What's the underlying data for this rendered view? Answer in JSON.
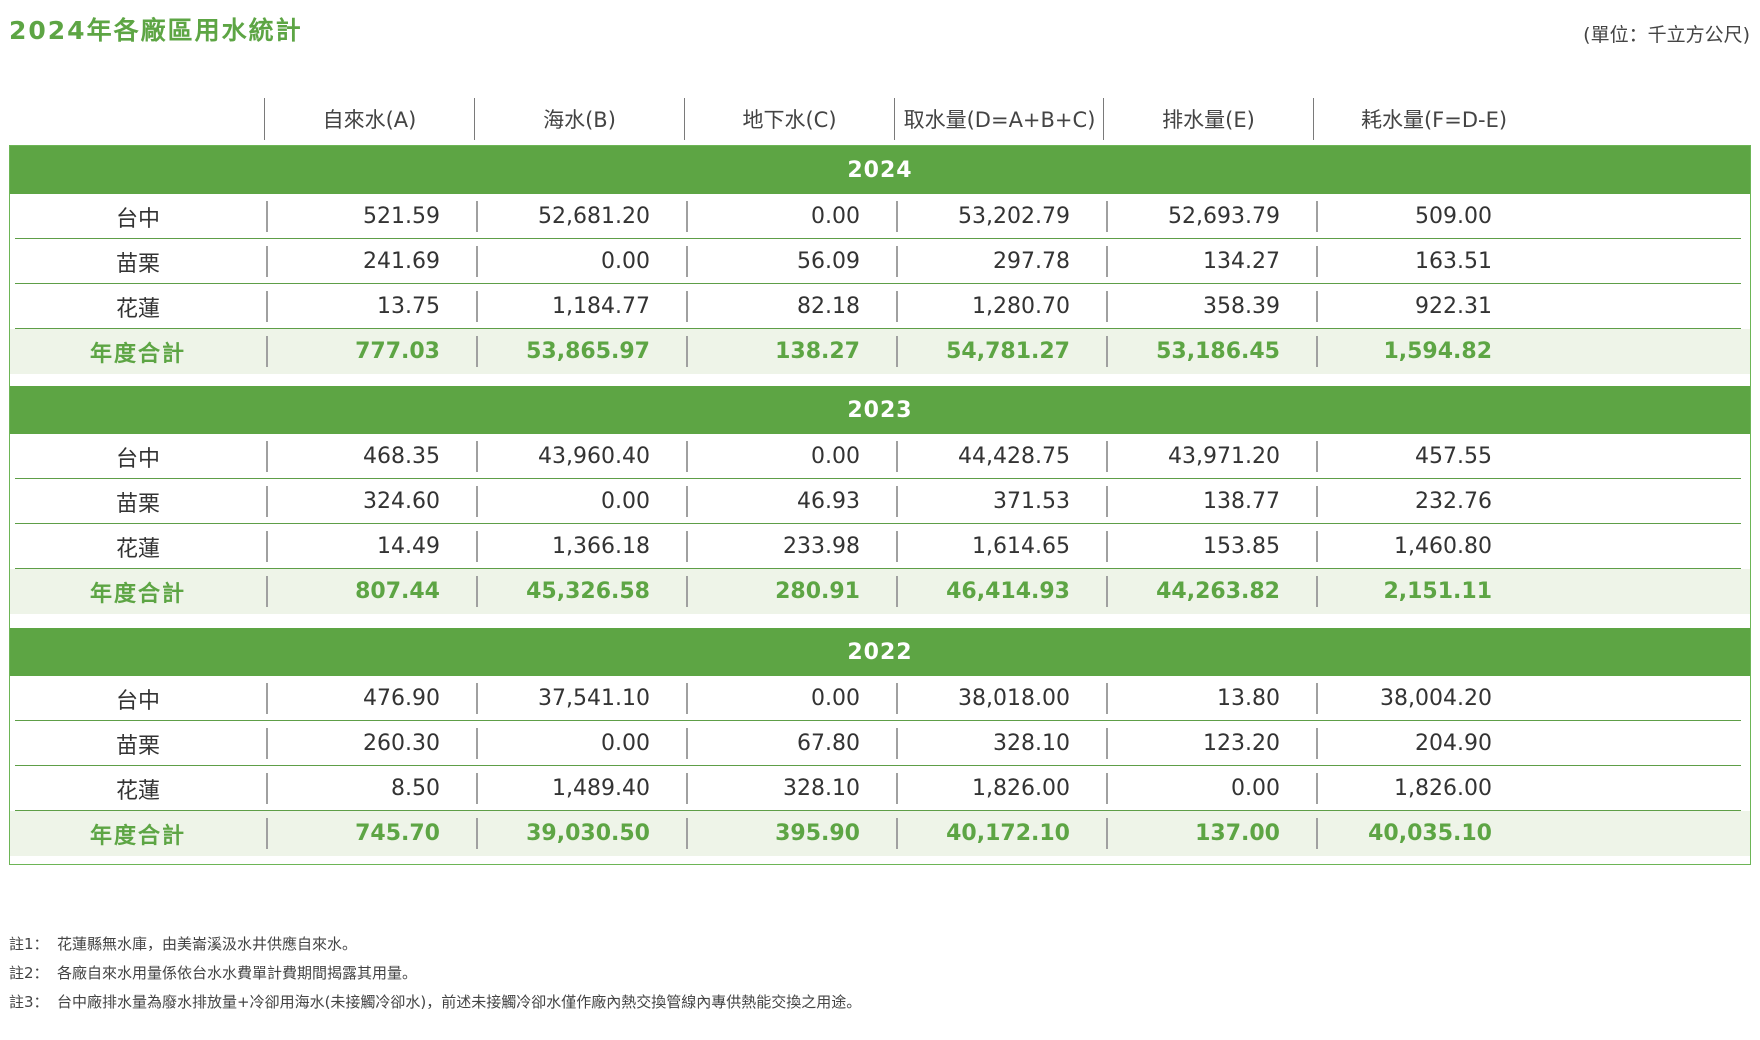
{
  "title": "2024年各廠區用水統計",
  "unit": "(單位：千立方公尺)",
  "columns": [
    "自來水(A)",
    "海水(B)",
    "地下水(C)",
    "取水量(D=A+B+C)",
    "排水量(E)",
    "耗水量(F=D-E)"
  ],
  "years": [
    {
      "year": "2024",
      "rows": [
        {
          "label": "台中",
          "values": [
            "521.59",
            "52,681.20",
            "0.00",
            "53,202.79",
            "52,693.79",
            "509.00"
          ]
        },
        {
          "label": "苗栗",
          "values": [
            "241.69",
            "0.00",
            "56.09",
            "297.78",
            "134.27",
            "163.51"
          ]
        },
        {
          "label": "花蓮",
          "values": [
            "13.75",
            "1,184.77",
            "82.18",
            "1,280.70",
            "358.39",
            "922.31"
          ]
        }
      ],
      "total": {
        "label": "年度合計",
        "values": [
          "777.03",
          "53,865.97",
          "138.27",
          "54,781.27",
          "53,186.45",
          "1,594.82"
        ]
      }
    },
    {
      "year": "2023",
      "rows": [
        {
          "label": "台中",
          "values": [
            "468.35",
            "43,960.40",
            "0.00",
            "44,428.75",
            "43,971.20",
            "457.55"
          ]
        },
        {
          "label": "苗栗",
          "values": [
            "324.60",
            "0.00",
            "46.93",
            "371.53",
            "138.77",
            "232.76"
          ]
        },
        {
          "label": "花蓮",
          "values": [
            "14.49",
            "1,366.18",
            "233.98",
            "1,614.65",
            "153.85",
            "1,460.80"
          ]
        }
      ],
      "total": {
        "label": "年度合計",
        "values": [
          "807.44",
          "45,326.58",
          "280.91",
          "46,414.93",
          "44,263.82",
          "2,151.11"
        ]
      }
    },
    {
      "year": "2022",
      "rows": [
        {
          "label": "台中",
          "values": [
            "476.90",
            "37,541.10",
            "0.00",
            "38,018.00",
            "13.80",
            "38,004.20"
          ]
        },
        {
          "label": "苗栗",
          "values": [
            "260.30",
            "0.00",
            "67.80",
            "328.10",
            "123.20",
            "204.90"
          ]
        },
        {
          "label": "花蓮",
          "values": [
            "8.50",
            "1,489.40",
            "328.10",
            "1,826.00",
            "0.00",
            "1,826.00"
          ]
        }
      ],
      "total": {
        "label": "年度合計",
        "values": [
          "745.70",
          "39,030.50",
          "395.90",
          "40,172.10",
          "137.00",
          "40,035.10"
        ]
      }
    }
  ],
  "notes": [
    {
      "label": "註1：",
      "text": "花蓮縣無水庫，由美崙溪汲水井供應自來水。"
    },
    {
      "label": "註2：",
      "text": "各廠自來水用量係依台水水費單計費期間揭露其用量。"
    },
    {
      "label": "註3：",
      "text": "台中廠排水量為廢水排放量+冷卻用海水(未接觸冷卻水)，前述未接觸冷卻水僅作廠內熱交換管線內專供熱能交換之用途。"
    }
  ]
}
